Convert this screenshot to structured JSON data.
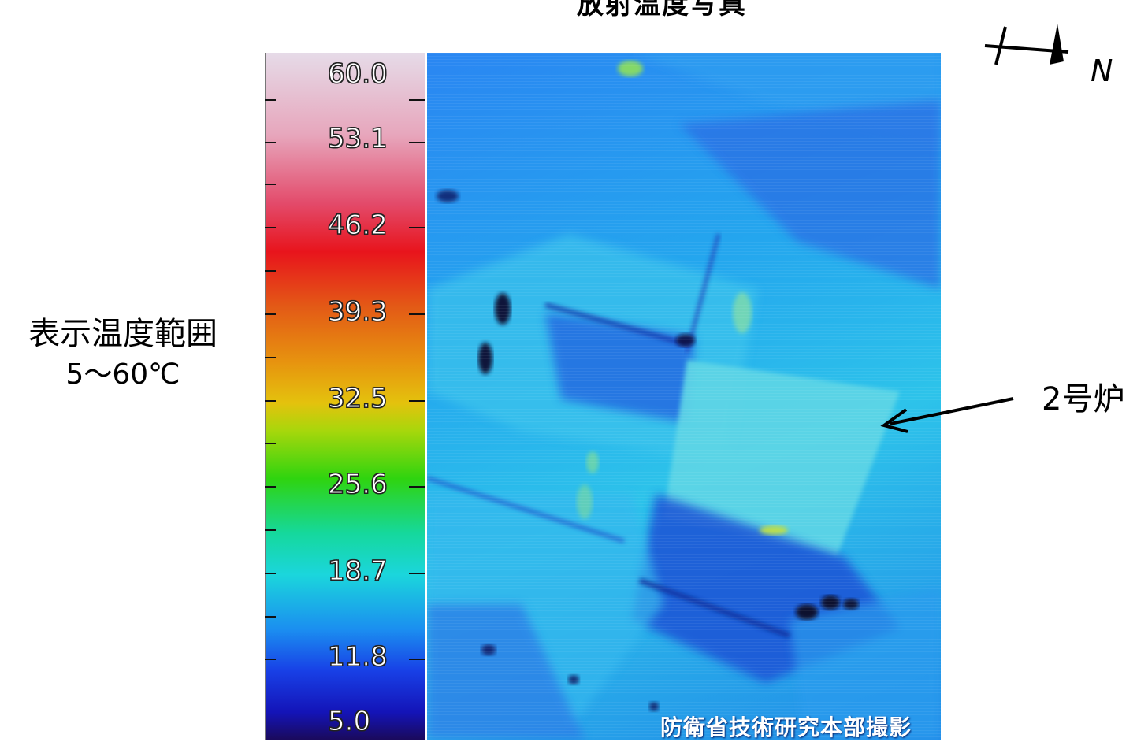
{
  "title": "放射温度写真",
  "range_label": {
    "line1": "表示温度範囲",
    "line2": "5～60℃"
  },
  "scale": {
    "ticks": [
      "60.0",
      "53.1",
      "46.2",
      "39.3",
      "32.5",
      "25.6",
      "18.7",
      "11.8",
      "5.0"
    ]
  },
  "credit": "防衛省技術研究本部撮影",
  "reactor_label": "2号炉",
  "north_label": "N"
}
